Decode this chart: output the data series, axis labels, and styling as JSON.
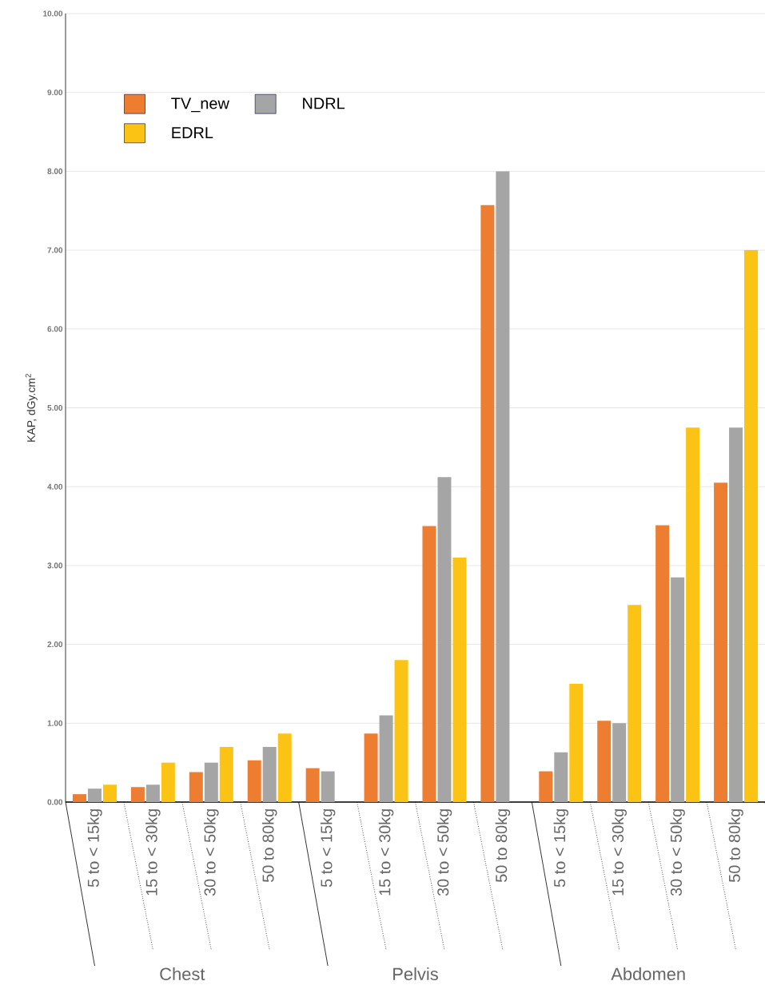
{
  "chart_data": {
    "type": "bar",
    "ylabel": "KAP, dGy.cm$^{2}$",
    "categories": [
      "5 to < 15kg",
      "15 to < 30kg",
      "30 to < 50kg",
      "50 to 80kg",
      "5 to < 15kg",
      "15 to < 30kg",
      "30 to < 50kg",
      "50 to 80kg",
      "5 to < 15kg",
      "15 to < 30kg",
      "30 to < 50kg",
      "50 to 80kg"
    ],
    "series": [
      {
        "name": "TV_new",
        "color": "#ed7d31",
        "values": [
          0.1,
          0.19,
          0.38,
          0.53,
          0.43,
          0.87,
          3.5,
          7.57,
          0.39,
          1.03,
          3.51,
          4.05
        ]
      },
      {
        "name": "NDRL",
        "color": "#a5a5a5",
        "values": [
          0.17,
          0.22,
          0.5,
          0.7,
          0.39,
          1.1,
          4.12,
          8.0,
          0.63,
          1.0,
          2.85,
          4.75
        ]
      },
      {
        "name": "EDRL",
        "color": "#fbc314",
        "values": [
          0.22,
          0.5,
          0.7,
          0.87,
          null,
          1.8,
          3.1,
          null,
          1.5,
          2.5,
          4.75,
          7.0
        ]
      }
    ],
    "ylim": [
      0,
      10
    ],
    "yticks": [
      {
        "value": 0,
        "label": "0.00"
      },
      {
        "value": 1,
        "label": "1.00"
      },
      {
        "value": 2,
        "label": "2.00"
      },
      {
        "value": 3,
        "label": "3.00"
      },
      {
        "value": 4,
        "label": "4.00"
      },
      {
        "value": 5,
        "label": "5.00"
      },
      {
        "value": 6,
        "label": "6.00"
      },
      {
        "value": 7,
        "label": "7.00"
      },
      {
        "value": 8,
        "label": "8.00"
      },
      {
        "value": 9,
        "label": "9.00"
      },
      {
        "value": 10,
        "label": "10.00"
      }
    ],
    "grid": "y",
    "legend": "top left",
    "annotations": [
      "Chest",
      "Pelvis",
      "Abdomen"
    ]
  }
}
